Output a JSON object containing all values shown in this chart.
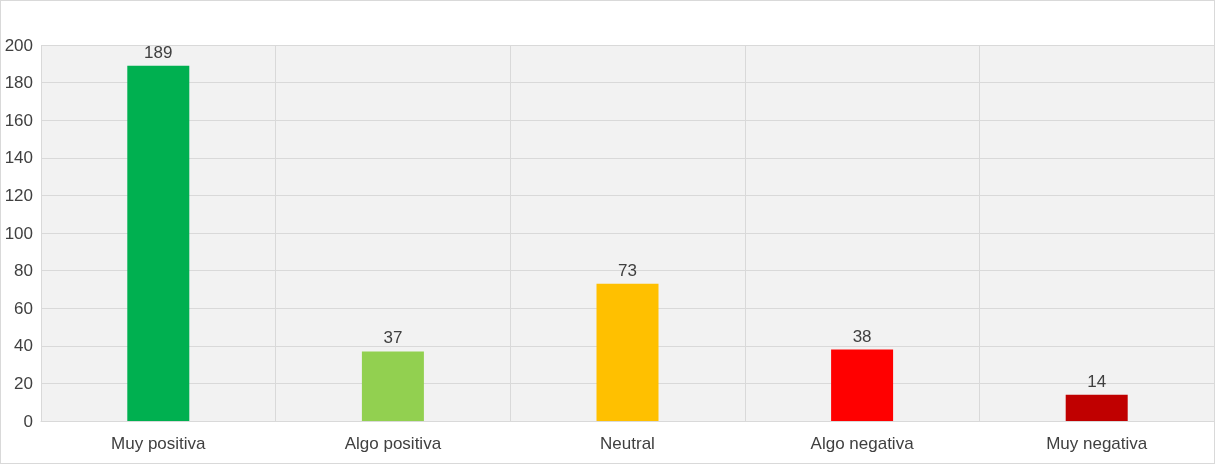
{
  "chart_data": {
    "type": "bar",
    "categories": [
      "Muy positiva",
      "Algo positiva",
      "Neutral",
      "Algo negativa",
      "Muy negativa"
    ],
    "values": [
      189,
      37,
      73,
      38,
      14
    ],
    "colors": [
      "#00b050",
      "#92d050",
      "#ffc000",
      "#ff0000",
      "#c00000"
    ],
    "ylim": [
      0,
      200
    ],
    "yticks": [
      0,
      20,
      40,
      60,
      80,
      100,
      120,
      140,
      160,
      180,
      200
    ],
    "grid": true,
    "data_labels": true
  }
}
